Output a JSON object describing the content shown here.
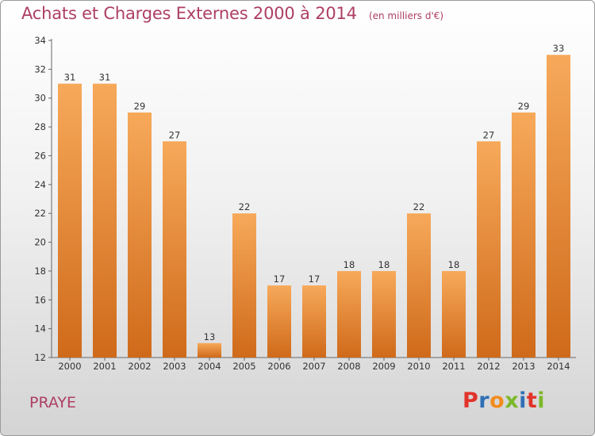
{
  "header": {
    "title": "Achats et Charges Externes 2000 à 2014",
    "subtitle": "(en milliers d'€)"
  },
  "footer": {
    "commune": "PRAYE",
    "logo": "Proxiti",
    "logo_colors": [
      "#e2332a",
      "#2f6fb5",
      "#f28c1d",
      "#7cb829",
      "#2f6fb5",
      "#e2332a",
      "#7cb829"
    ]
  },
  "colors": {
    "bar_top": "#f7a95a",
    "bar_bottom": "#cf6a1a",
    "title": "#ad3f63"
  },
  "chart_data": {
    "type": "bar",
    "categories": [
      "2000",
      "2001",
      "2002",
      "2003",
      "2004",
      "2005",
      "2006",
      "2007",
      "2008",
      "2009",
      "2010",
      "2011",
      "2012",
      "2013",
      "2014"
    ],
    "values": [
      31,
      31,
      29,
      27,
      13,
      22,
      17,
      17,
      18,
      18,
      22,
      18,
      27,
      29,
      33
    ],
    "ylim": [
      12,
      34
    ],
    "yticks": [
      12,
      14,
      16,
      18,
      20,
      22,
      24,
      26,
      28,
      30,
      32,
      34
    ],
    "data_labels": true,
    "grid": false,
    "title": "Achats et Charges Externes 2000 à 2014",
    "xlabel": "",
    "ylabel": ""
  }
}
